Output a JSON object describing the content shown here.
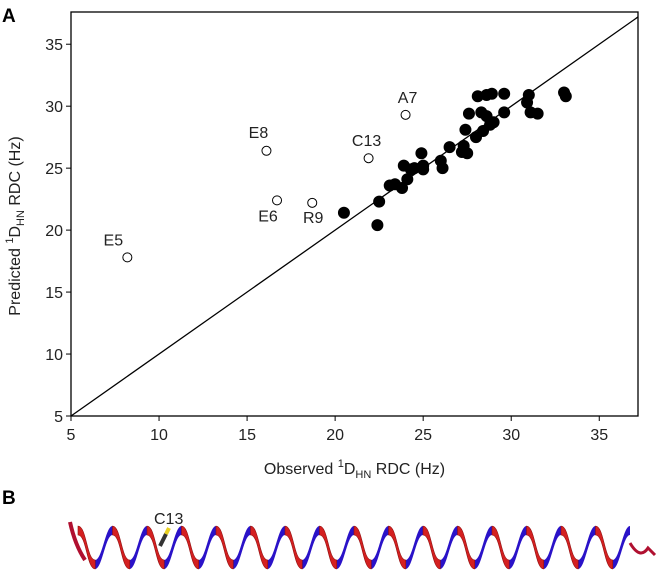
{
  "chart_data": {
    "type": "scatter",
    "panel_labels": [
      "A",
      "B"
    ],
    "xlabel": {
      "pre": "Observed ",
      "sup": "1",
      "main": "D",
      "sub": "HN",
      "post": " RDC (Hz)"
    },
    "ylabel": {
      "pre": "Predicted ",
      "sup": "1",
      "main": "D",
      "sub": "HN",
      "post": " RDC (Hz)"
    },
    "xlim": [
      5,
      37.2
    ],
    "ylim": [
      5,
      37.6
    ],
    "xticks": [
      5,
      10,
      15,
      20,
      25,
      30,
      35
    ],
    "yticks": [
      5,
      10,
      15,
      20,
      25,
      30,
      35
    ],
    "identity_line": true,
    "series": [
      {
        "marker": "filled",
        "color": "#000000",
        "x": [
          20.5,
          22.4,
          22.5,
          23.1,
          23.4,
          23.8,
          23.9,
          24.1,
          24.3,
          24.5,
          24.9,
          25.0,
          25.0,
          26.0,
          26.1,
          26.5,
          27.2,
          27.3,
          27.4,
          27.5,
          27.6,
          28.0,
          28.1,
          28.3,
          28.4,
          28.6,
          28.6,
          28.8,
          28.9,
          29.0,
          29.6,
          29.6,
          30.9,
          31.0,
          31.1,
          31.5,
          33.0,
          33.1
        ],
        "y": [
          21.4,
          20.4,
          22.3,
          23.6,
          23.7,
          23.4,
          25.2,
          24.1,
          24.9,
          25.0,
          26.2,
          24.9,
          25.2,
          25.6,
          25.0,
          26.7,
          26.3,
          26.8,
          28.1,
          26.2,
          29.4,
          27.5,
          30.8,
          29.5,
          28.0,
          29.2,
          30.9,
          28.5,
          31.0,
          28.7,
          31.0,
          29.5,
          30.3,
          30.9,
          29.5,
          29.4,
          31.1,
          30.8
        ]
      },
      {
        "marker": "open",
        "color": "#000000",
        "x": [
          8.2,
          16.1,
          16.7,
          18.7,
          21.9,
          24.0
        ],
        "y": [
          17.8,
          26.4,
          22.4,
          22.2,
          25.8,
          29.3
        ],
        "labels": [
          "E5",
          "E8",
          "E6",
          "R9",
          "C13",
          "A7"
        ]
      }
    ],
    "structure_label": "C13"
  }
}
